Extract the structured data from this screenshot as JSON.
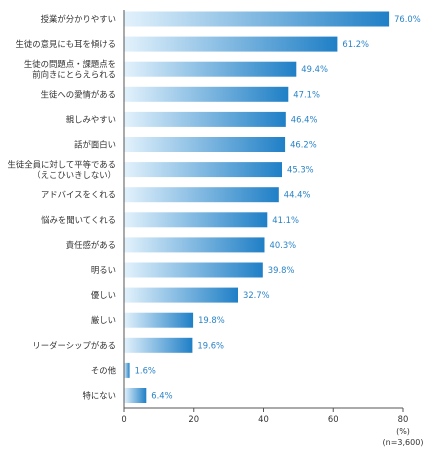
{
  "chart_data": {
    "type": "bar",
    "orientation": "horizontal",
    "categories": [
      [
        "授業が分かりやすい"
      ],
      [
        "生徒の意見にも耳を傾ける"
      ],
      [
        "生徒の問題点・課題点を",
        "前向きにとらえられる"
      ],
      [
        "生徒への愛情がある"
      ],
      [
        "親しみやすい"
      ],
      [
        "話が面白い"
      ],
      [
        "生徒全員に対して平等である",
        "（えこひいきしない）"
      ],
      [
        "アドバイスをくれる"
      ],
      [
        "悩みを聞いてくれる"
      ],
      [
        "責任感がある"
      ],
      [
        "明るい"
      ],
      [
        "優しい"
      ],
      [
        "厳しい"
      ],
      [
        "リーダーシップがある"
      ],
      [
        "その他"
      ],
      [
        "特にない"
      ]
    ],
    "values": [
      76.0,
      61.2,
      49.4,
      47.1,
      46.4,
      46.2,
      45.3,
      44.4,
      41.1,
      40.3,
      39.8,
      32.7,
      19.8,
      19.6,
      1.6,
      6.4
    ],
    "value_labels": [
      "76.0%",
      "61.2%",
      "49.4%",
      "47.1%",
      "46.4%",
      "46.2%",
      "45.3%",
      "44.4%",
      "41.1%",
      "40.3%",
      "39.8%",
      "32.7%",
      "19.8%",
      "19.6%",
      "1.6%",
      "6.4%"
    ],
    "xlim": [
      0,
      80
    ],
    "xticks": [
      0,
      20,
      40,
      60,
      80
    ],
    "x_unit": "(%)",
    "sample_note": "(n=3,600)",
    "grid": false,
    "bar_gradient": [
      "#e3f2fc",
      "#1f7fc6"
    ],
    "value_color": "#2a83c8"
  }
}
